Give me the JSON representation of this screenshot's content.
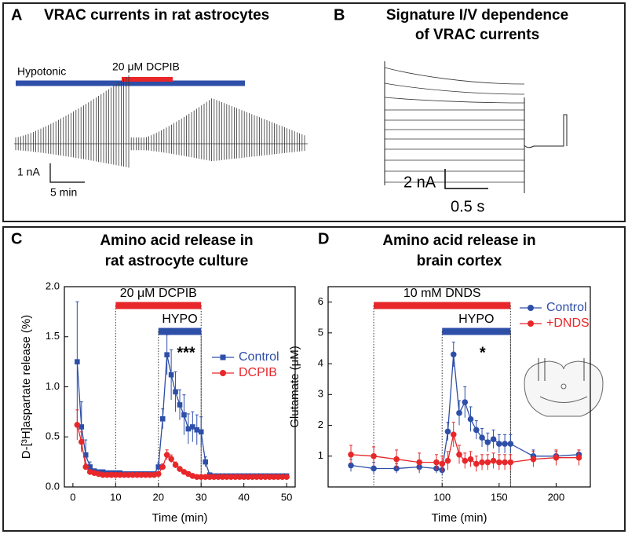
{
  "panel_a": {
    "letter": "A",
    "title": "VRAC currents in rat astrocytes",
    "hypotonic": "Hypotonic",
    "drug": "20 μM DCPIB",
    "scale_y": "1 nA",
    "scale_x": "5 min"
  },
  "panel_b": {
    "letter": "B",
    "title": [
      "Signature I/V dependence",
      "of VRAC currents"
    ],
    "scale_y": "2 nA",
    "scale_x": "0.5 s"
  },
  "chart_data": [
    {
      "type": "line",
      "letter": "C",
      "title": [
        "Amino acid release in",
        "rat astrocyte culture"
      ],
      "x_label": "Time (min)",
      "y_label": "D-[³H]aspartate release (%)",
      "x": [
        1,
        2,
        3,
        4,
        5,
        6,
        7,
        8,
        9,
        10,
        11,
        12,
        13,
        14,
        15,
        16,
        17,
        18,
        19,
        20,
        21,
        22,
        23,
        24,
        25,
        26,
        27,
        28,
        29,
        30,
        31,
        32,
        33,
        34,
        35,
        36,
        37,
        38,
        39,
        40,
        41,
        42,
        43,
        44,
        45,
        46,
        47,
        48,
        49,
        50
      ],
      "series": [
        {
          "name": "Control",
          "color": "#2e4fa8",
          "marker": "square",
          "values": [
            1.25,
            0.6,
            0.32,
            0.2,
            0.16,
            0.15,
            0.15,
            0.14,
            0.14,
            0.14,
            0.14,
            0.13,
            0.13,
            0.13,
            0.13,
            0.13,
            0.13,
            0.13,
            0.13,
            0.2,
            0.68,
            1.32,
            1.12,
            0.95,
            0.82,
            0.72,
            0.58,
            0.6,
            0.57,
            0.55,
            0.25,
            0.12,
            0.11,
            0.11,
            0.11,
            0.11,
            0.11,
            0.11,
            0.11,
            0.11,
            0.11,
            0.11,
            0.11,
            0.11,
            0.11,
            0.11,
            0.11,
            0.11,
            0.11,
            0.11
          ],
          "errors": [
            0.6,
            0.25,
            0.15,
            0.05,
            0.02,
            0.02,
            0.02,
            0.02,
            0.02,
            0.02,
            0.02,
            0.02,
            0.02,
            0.02,
            0.02,
            0.02,
            0.02,
            0.02,
            0.02,
            0.04,
            0.1,
            0.2,
            0.25,
            0.2,
            0.15,
            0.2,
            0.15,
            0.15,
            0.15,
            0.15,
            0.05,
            0.02,
            0.02,
            0.02,
            0.02,
            0.02,
            0.02,
            0.02,
            0.02,
            0.02,
            0.02,
            0.02,
            0.02,
            0.02,
            0.02,
            0.02,
            0.02,
            0.02,
            0.02,
            0.02
          ]
        },
        {
          "name": "DCPIB",
          "color": "#e8272a",
          "marker": "circle",
          "values": [
            0.62,
            0.45,
            0.2,
            0.15,
            0.14,
            0.13,
            0.12,
            0.12,
            0.12,
            0.12,
            0.12,
            0.12,
            0.12,
            0.12,
            0.12,
            0.12,
            0.12,
            0.12,
            0.12,
            0.13,
            0.2,
            0.32,
            0.28,
            0.22,
            0.18,
            0.15,
            0.13,
            0.11,
            0.1,
            0.1,
            0.1,
            0.1,
            0.1,
            0.1,
            0.1,
            0.1,
            0.1,
            0.1,
            0.1,
            0.1,
            0.1,
            0.1,
            0.1,
            0.1,
            0.1,
            0.1,
            0.1,
            0.1,
            0.1,
            0.1
          ],
          "errors": [
            0.15,
            0.1,
            0.03,
            0.02,
            0.02,
            0.02,
            0.02,
            0.02,
            0.02,
            0.02,
            0.02,
            0.02,
            0.02,
            0.02,
            0.02,
            0.02,
            0.02,
            0.02,
            0.02,
            0.02,
            0.03,
            0.05,
            0.04,
            0.03,
            0.02,
            0.02,
            0.02,
            0.02,
            0.02,
            0.02,
            0.02,
            0.02,
            0.02,
            0.02,
            0.02,
            0.02,
            0.02,
            0.02,
            0.02,
            0.02,
            0.02,
            0.02,
            0.02,
            0.02,
            0.02,
            0.02,
            0.02,
            0.02,
            0.02,
            0.02
          ]
        }
      ],
      "xlim": [
        -2,
        52
      ],
      "xticks": [
        0,
        10,
        20,
        30,
        40,
        50
      ],
      "ylim": [
        0,
        2
      ],
      "yticks": [
        {
          "value": 0,
          "label": "0.0"
        },
        {
          "value": 0.5,
          "label": "0.5"
        },
        {
          "value": 1,
          "label": "1.0"
        },
        {
          "value": 1.5,
          "label": "1.5"
        },
        {
          "value": 2,
          "label": "2.0"
        }
      ],
      "treatments": [
        {
          "text": "20 μM DCPIB",
          "start": 10,
          "end": 30,
          "color": "#e8272a"
        },
        {
          "text": "HYPO",
          "start": 20,
          "end": 30,
          "color": "#2e4fa8"
        }
      ],
      "significance": "***",
      "legend": "right"
    },
    {
      "type": "line",
      "letter": "D",
      "title": [
        "Amino acid release in",
        "brain cortex"
      ],
      "x_label": "Time (min)",
      "y_label": "Glutamate (μM)",
      "x": [
        20,
        40,
        60,
        80,
        95,
        100,
        105,
        110,
        115,
        120,
        125,
        130,
        135,
        140,
        145,
        150,
        155,
        160,
        180,
        200,
        220
      ],
      "series": [
        {
          "name": "Control",
          "color": "#2e4fa8",
          "marker": "circle",
          "values": [
            0.7,
            0.6,
            0.6,
            0.65,
            0.6,
            0.55,
            1.8,
            4.3,
            2.4,
            2.75,
            2.2,
            1.85,
            1.6,
            1.45,
            1.55,
            1.4,
            1.4,
            1.4,
            1.0,
            1.0,
            1.05
          ],
          "errors": [
            0.2,
            0.2,
            0.15,
            0.2,
            0.15,
            0.15,
            0.3,
            0.4,
            0.4,
            0.5,
            0.4,
            0.3,
            0.3,
            0.3,
            0.3,
            0.3,
            0.3,
            0.3,
            0.2,
            0.15,
            0.15
          ]
        },
        {
          "name": "+DNDS",
          "color": "#e8272a",
          "marker": "circle",
          "values": [
            1.05,
            1.0,
            0.9,
            0.8,
            0.8,
            0.75,
            0.85,
            1.7,
            1.05,
            0.85,
            0.9,
            0.75,
            0.8,
            0.8,
            0.85,
            0.8,
            0.8,
            0.8,
            0.9,
            0.95,
            0.95
          ],
          "errors": [
            0.3,
            0.3,
            0.3,
            0.3,
            0.25,
            0.25,
            0.3,
            0.4,
            0.3,
            0.25,
            0.25,
            0.25,
            0.25,
            0.25,
            0.25,
            0.25,
            0.25,
            0.25,
            0.25,
            0.25,
            0.25
          ]
        }
      ],
      "xlim": [
        0,
        230
      ],
      "xticks": [
        100,
        150,
        200
      ],
      "ylim": [
        0,
        6.5
      ],
      "yticks": [
        1,
        2,
        3,
        4,
        5,
        6
      ],
      "treatments": [
        {
          "text": "10 mM DNDS",
          "start": 40,
          "end": 160,
          "color": "#e8272a"
        },
        {
          "text": "HYPO",
          "start": 100,
          "end": 160,
          "color": "#2e4fa8"
        }
      ],
      "significance": "*",
      "legend": "upper right"
    }
  ]
}
